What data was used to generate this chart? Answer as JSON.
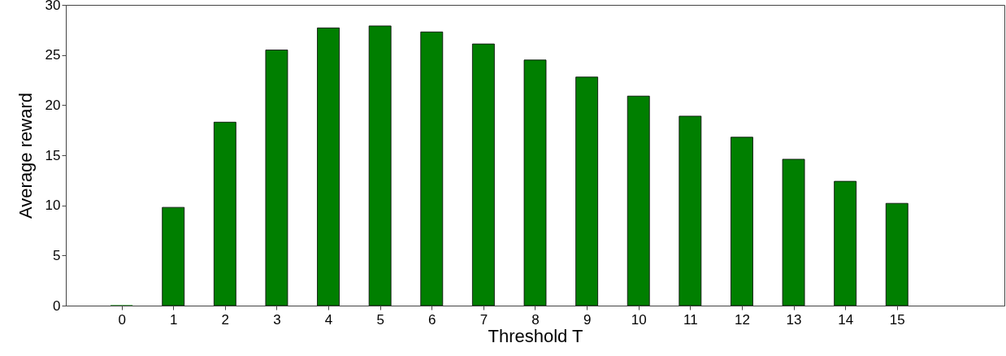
{
  "chart_data": {
    "type": "bar",
    "xlabel": "Threshold T",
    "ylabel": "Average reward",
    "x": [
      0,
      1,
      2,
      3,
      4,
      5,
      6,
      7,
      8,
      9,
      10,
      11,
      12,
      13,
      14,
      15
    ],
    "values": [
      0,
      9.8,
      18.3,
      25.5,
      27.7,
      27.9,
      27.3,
      26.1,
      24.5,
      22.8,
      20.9,
      18.9,
      16.8,
      14.6,
      12.4,
      10.2
    ],
    "color": "#007f00",
    "xlim": [
      -1,
      17
    ],
    "xticks": [
      0,
      1,
      2,
      3,
      4,
      5,
      6,
      7,
      8,
      9,
      10,
      11,
      12,
      13,
      14,
      15
    ],
    "ylim": [
      0,
      30
    ],
    "yticks": [
      0,
      5,
      10,
      15,
      20,
      25,
      30
    ],
    "grid": false
  }
}
